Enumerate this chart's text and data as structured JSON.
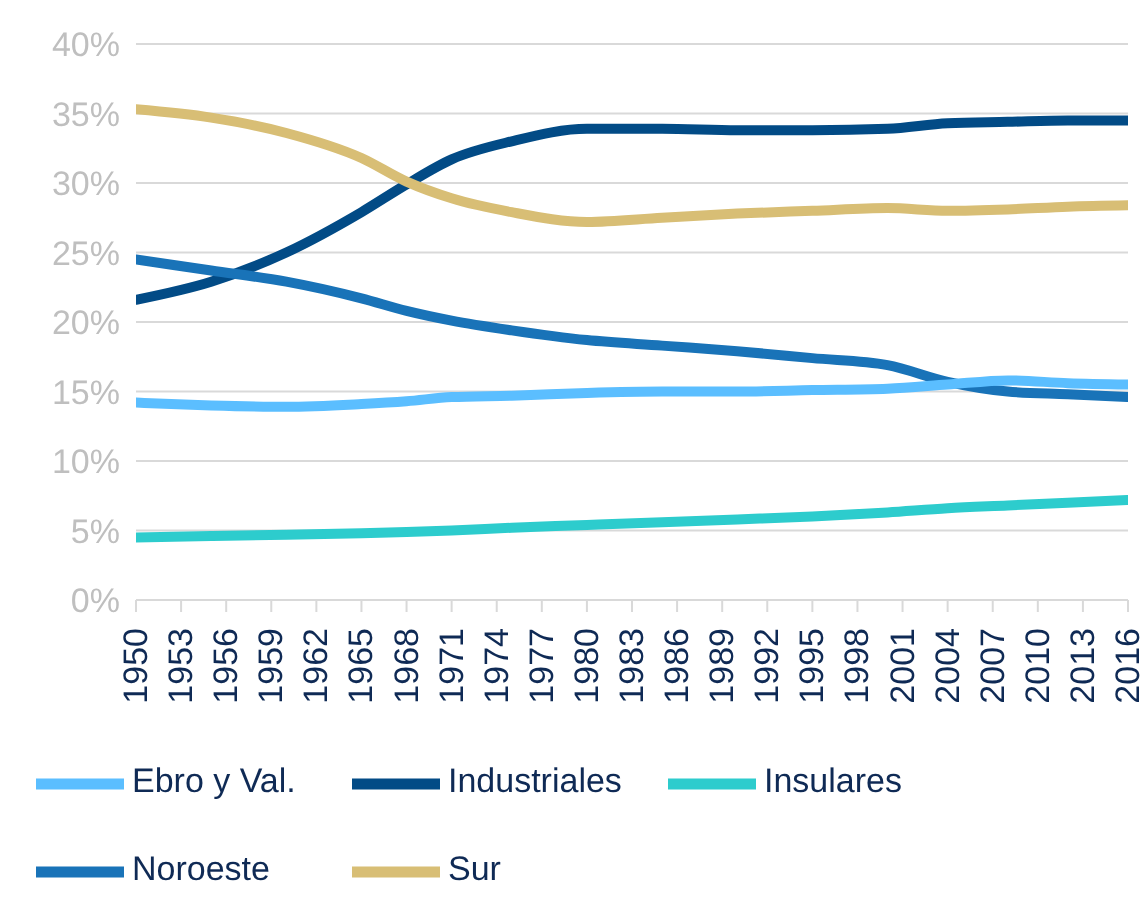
{
  "chart_data": {
    "type": "line",
    "x": [
      1950,
      1955,
      1960,
      1965,
      1968,
      1971,
      1975,
      1980,
      1985,
      1990,
      1995,
      2000,
      2004,
      2008,
      2012,
      2016
    ],
    "series": [
      {
        "name": "Industriales",
        "color": "#024b86",
        "values": [
          21.6,
          22.9,
          25.0,
          27.9,
          29.9,
          31.7,
          33.0,
          33.9,
          33.9,
          33.8,
          33.8,
          33.9,
          34.3,
          34.4,
          34.5,
          34.5
        ]
      },
      {
        "name": "Insulares",
        "color": "#2dcccd",
        "values": [
          4.5,
          4.6,
          4.7,
          4.8,
          4.9,
          5.0,
          5.2,
          5.4,
          5.6,
          5.8,
          6.0,
          6.3,
          6.6,
          6.8,
          7.0,
          7.2
        ]
      },
      {
        "name": "Noroeste",
        "color": "#1973b8",
        "values": [
          24.5,
          23.7,
          22.9,
          21.7,
          20.8,
          20.1,
          19.4,
          18.7,
          18.3,
          17.9,
          17.4,
          16.9,
          15.7,
          15.0,
          14.8,
          14.6
        ]
      },
      {
        "name": "Sur",
        "color": "#d8be75",
        "values": [
          35.3,
          34.7,
          33.6,
          31.8,
          30.1,
          28.9,
          27.9,
          27.2,
          27.5,
          27.8,
          28.0,
          28.2,
          28.0,
          28.1,
          28.3,
          28.4
        ]
      },
      {
        "name": "Ebro y Val.",
        "color": "#5bbeff",
        "values": [
          14.2,
          14.0,
          13.9,
          14.1,
          14.3,
          14.6,
          14.7,
          14.9,
          15.0,
          15.0,
          15.1,
          15.2,
          15.5,
          15.8,
          15.6,
          15.5
        ]
      }
    ],
    "xlim": [
      1950,
      2016
    ],
    "xticks": [
      1950,
      1953,
      1956,
      1959,
      1962,
      1965,
      1968,
      1971,
      1974,
      1977,
      1980,
      1983,
      1986,
      1989,
      1992,
      1995,
      1998,
      2001,
      2004,
      2007,
      2010,
      2013,
      2016
    ],
    "ylim": [
      0,
      40
    ],
    "yticks": [
      {
        "value": 0,
        "label": "0%"
      },
      {
        "value": 5,
        "label": "5%"
      },
      {
        "value": 10,
        "label": "10%"
      },
      {
        "value": 15,
        "label": "15%"
      },
      {
        "value": 20,
        "label": "20%"
      },
      {
        "value": 25,
        "label": "25%"
      },
      {
        "value": 30,
        "label": "30%"
      },
      {
        "value": 35,
        "label": "35%"
      },
      {
        "value": 40,
        "label": "40%"
      }
    ],
    "grid": "y",
    "legend": "bottom",
    "marker": "none",
    "line_style": "solid"
  }
}
